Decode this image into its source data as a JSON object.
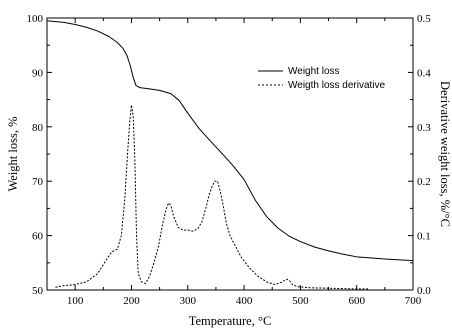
{
  "chart_data": {
    "type": "line",
    "xlabel": "Temperature, °C",
    "ylabel_left": "Weight loss, %",
    "ylabel_right": "Derivative weight loss, %/°C",
    "xlim": [
      50,
      700
    ],
    "ylim_left": [
      50,
      100
    ],
    "ylim_right": [
      0.0,
      0.5
    ],
    "x_ticks": [
      "100",
      "200",
      "300",
      "400",
      "500",
      "600",
      "700"
    ],
    "y_ticks_left": [
      "50",
      "60",
      "70",
      "80",
      "90",
      "100"
    ],
    "y_ticks_right": [
      "0.0",
      "0.1",
      "0.2",
      "0.3",
      "0.4",
      "0.5"
    ],
    "grid": false,
    "legend_position": "top-right",
    "series": [
      {
        "name": "Weight loss",
        "axis": "left",
        "style": "solid",
        "color": "#000000",
        "x": [
          50,
          80,
          100,
          120,
          140,
          160,
          175,
          185,
          192,
          198,
          203,
          208,
          215,
          230,
          250,
          270,
          285,
          300,
          320,
          340,
          360,
          380,
          400,
          420,
          440,
          460,
          480,
          500,
          525,
          550,
          575,
          600,
          650,
          700
        ],
        "y": [
          99.5,
          99.2,
          98.8,
          98.3,
          97.6,
          96.6,
          95.5,
          94.4,
          93.1,
          91.2,
          89.1,
          87.6,
          87.2,
          87.0,
          86.7,
          86.1,
          84.8,
          82.5,
          79.7,
          77.4,
          75.2,
          72.9,
          70.3,
          66.5,
          63.5,
          61.4,
          59.9,
          58.9,
          57.9,
          57.2,
          56.6,
          56.1,
          55.7,
          55.4
        ]
      },
      {
        "name": "Weigth loss derivative",
        "axis": "right",
        "style": "dashed",
        "color": "#000000",
        "x": [
          65,
          80,
          100,
          120,
          140,
          155,
          165,
          175,
          182,
          188,
          193,
          197,
          200,
          203,
          206,
          209,
          212,
          218,
          225,
          232,
          240,
          248,
          255,
          262,
          266,
          270,
          275,
          283,
          292,
          300,
          310,
          318,
          325,
          332,
          338,
          343,
          348,
          353,
          358,
          363,
          368,
          375,
          385,
          395,
          410,
          425,
          440,
          455,
          468,
          475,
          480,
          486,
          495,
          520,
          560,
          600,
          620
        ],
        "y": [
          0.005,
          0.008,
          0.01,
          0.015,
          0.03,
          0.055,
          0.07,
          0.075,
          0.1,
          0.165,
          0.25,
          0.31,
          0.34,
          0.32,
          0.24,
          0.1,
          0.03,
          0.015,
          0.012,
          0.025,
          0.05,
          0.08,
          0.12,
          0.15,
          0.16,
          0.155,
          0.135,
          0.115,
          0.11,
          0.11,
          0.108,
          0.113,
          0.125,
          0.15,
          0.175,
          0.19,
          0.2,
          0.2,
          0.18,
          0.155,
          0.125,
          0.1,
          0.08,
          0.06,
          0.04,
          0.025,
          0.015,
          0.01,
          0.015,
          0.02,
          0.018,
          0.01,
          0.006,
          0.004,
          0.003,
          0.002,
          0.002
        ]
      }
    ]
  }
}
